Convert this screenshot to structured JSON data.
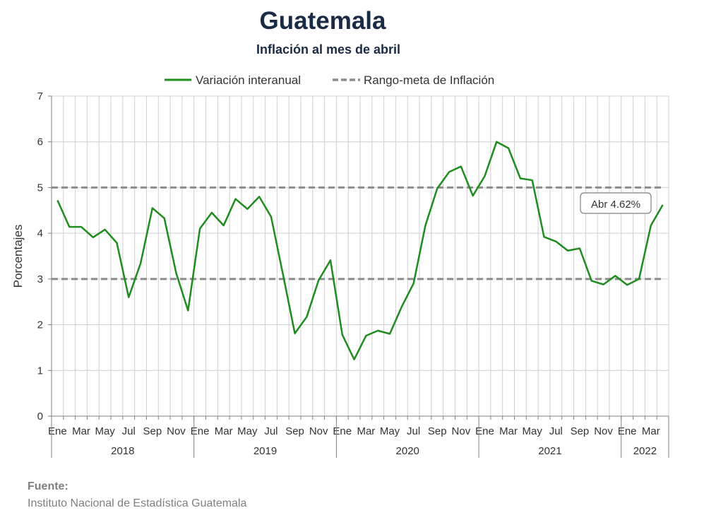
{
  "title": "Guatemala",
  "subtitle": "Inflación al mes de abril",
  "source": {
    "label": "Fuente:",
    "text": "Instituto Nacional de Estadística Guatemala"
  },
  "chart_data": {
    "type": "line",
    "ylabel": "Porcentajes",
    "ylim": [
      0,
      7
    ],
    "yticks": [
      0,
      1,
      2,
      3,
      4,
      5,
      6,
      7
    ],
    "grid": true,
    "legend_position": "top",
    "month_labels": [
      "Ene",
      "Mar",
      "May",
      "Jul",
      "Sep",
      "Nov",
      "Ene",
      "Mar",
      "May",
      "Jul",
      "Sep",
      "Nov",
      "Ene",
      "Mar",
      "May",
      "Jul",
      "Sep",
      "Nov",
      "Ene",
      "Mar",
      "May",
      "Jul",
      "Sep",
      "Nov",
      "Ene",
      "Mar"
    ],
    "years": [
      {
        "label": "2018",
        "months": 12
      },
      {
        "label": "2019",
        "months": 12
      },
      {
        "label": "2020",
        "months": 12
      },
      {
        "label": "2021",
        "months": 12
      },
      {
        "label": "2022",
        "months": 4
      }
    ],
    "series": [
      {
        "name": "Variación interanual",
        "color": "#1e8c1e",
        "style": "solid",
        "values": [
          4.72,
          4.14,
          4.14,
          3.91,
          4.08,
          3.79,
          2.6,
          3.34,
          4.55,
          4.33,
          3.13,
          2.31,
          4.1,
          4.45,
          4.17,
          4.75,
          4.53,
          4.8,
          4.36,
          3.1,
          1.81,
          2.17,
          2.97,
          3.41,
          1.78,
          1.24,
          1.76,
          1.87,
          1.8,
          2.39,
          2.9,
          4.17,
          4.98,
          5.34,
          5.46,
          4.82,
          5.25,
          6.0,
          5.86,
          5.2,
          5.16,
          3.92,
          3.82,
          3.62,
          3.67,
          2.96,
          2.88,
          3.07,
          2.87,
          3.0,
          4.17,
          4.62
        ]
      },
      {
        "name": "Rango-meta de Inflación",
        "color": "#8c8c8c",
        "style": "dashed",
        "levels": [
          3,
          5
        ]
      }
    ],
    "annotation": {
      "text": "Abr 4.62%",
      "point_index": 51
    }
  }
}
